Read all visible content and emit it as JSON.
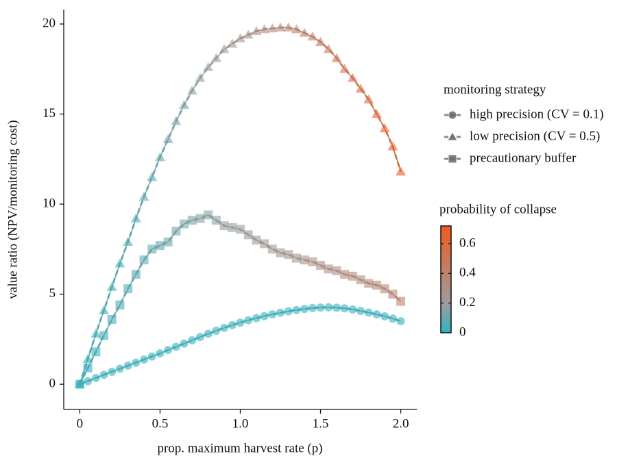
{
  "chart_data": {
    "type": "scatter-line",
    "x_label": "prop. maximum harvest rate (p)",
    "y_label": "value ratio (NPV/monitoring cost)",
    "xlim": [
      -0.1,
      2.1
    ],
    "ylim": [
      -1.4,
      20.8
    ],
    "xticks": [
      0,
      0.5,
      {
        "value": 1,
        "label": "1.0"
      },
      1.5,
      {
        "value": 2,
        "label": "2.0"
      }
    ],
    "yticks": [
      0,
      5,
      10,
      15,
      20
    ],
    "x": [
      0,
      0.05,
      0.1,
      0.15,
      0.2,
      0.25,
      0.3,
      0.35,
      0.4,
      0.45,
      0.5,
      0.55,
      0.6,
      0.65,
      0.7,
      0.75,
      0.8,
      0.85,
      0.9,
      0.95,
      1,
      1.05,
      1.1,
      1.15,
      1.2,
      1.25,
      1.3,
      1.35,
      1.4,
      1.45,
      1.5,
      1.55,
      1.6,
      1.65,
      1.7,
      1.75,
      1.8,
      1.85,
      1.9,
      1.95,
      2
    ],
    "legend": {
      "title": "monitoring strategy"
    },
    "series": [
      {
        "name": "high precision (CV = 0.1)",
        "marker": "circle",
        "values": [
          0,
          0.17,
          0.35,
          0.52,
          0.69,
          0.86,
          1.03,
          1.2,
          1.37,
          1.54,
          1.71,
          1.9,
          2.08,
          2.26,
          2.44,
          2.62,
          2.8,
          2.97,
          3.13,
          3.28,
          3.42,
          3.55,
          3.67,
          3.78,
          3.88,
          3.97,
          4.05,
          4.12,
          4.18,
          4.23,
          4.26,
          4.27,
          4.25,
          4.21,
          4.15,
          4.07,
          3.98,
          3.88,
          3.77,
          3.64,
          3.5
        ],
        "collapse": [
          0,
          0,
          0,
          0,
          0,
          0,
          0,
          0,
          0,
          0,
          0,
          0,
          0,
          0,
          0,
          0,
          0,
          0,
          0,
          0,
          0,
          0,
          0,
          0,
          0,
          0,
          0,
          0,
          0,
          0,
          0,
          0,
          0,
          0,
          0,
          0,
          0,
          0,
          0,
          0,
          0
        ]
      },
      {
        "name": "low precision (CV = 0.5)",
        "marker": "triangle",
        "values": [
          0,
          1.4,
          2.8,
          4.1,
          5.4,
          6.7,
          7.9,
          9.2,
          10.4,
          11.5,
          12.6,
          13.6,
          14.6,
          15.5,
          16.3,
          17,
          17.6,
          18.1,
          18.6,
          18.9,
          19.2,
          19.4,
          19.6,
          19.7,
          19.75,
          19.8,
          19.8,
          19.7,
          19.5,
          19.3,
          19,
          18.6,
          18.1,
          17.5,
          17,
          16.4,
          15.8,
          15,
          14.2,
          13.2,
          11.8
        ],
        "collapse": [
          0,
          0,
          0.01,
          0.02,
          0.02,
          0.03,
          0.04,
          0.05,
          0.07,
          0.08,
          0.09,
          0.11,
          0.12,
          0.14,
          0.16,
          0.17,
          0.19,
          0.21,
          0.23,
          0.25,
          0.27,
          0.29,
          0.31,
          0.33,
          0.35,
          0.37,
          0.39,
          0.42,
          0.44,
          0.46,
          0.49,
          0.51,
          0.54,
          0.56,
          0.59,
          0.61,
          0.64,
          0.67,
          0.69,
          0.72,
          0.75
        ]
      },
      {
        "name": "precautionary buffer",
        "marker": "square",
        "values": [
          0,
          0.9,
          1.8,
          2.7,
          3.6,
          4.4,
          5.3,
          6.1,
          6.9,
          7.5,
          7.7,
          7.9,
          8.5,
          8.9,
          9.1,
          9.2,
          9.4,
          9.1,
          8.8,
          8.7,
          8.6,
          8.3,
          8,
          7.8,
          7.5,
          7.3,
          7.2,
          7,
          6.9,
          6.8,
          6.6,
          6.4,
          6.3,
          6.1,
          6,
          5.8,
          5.6,
          5.5,
          5.3,
          5,
          4.6
        ],
        "collapse": [
          0,
          0.01,
          0.02,
          0.03,
          0.04,
          0.05,
          0.06,
          0.07,
          0.08,
          0.09,
          0.1,
          0.11,
          0.12,
          0.13,
          0.14,
          0.15,
          0.16,
          0.17,
          0.18,
          0.19,
          0.2,
          0.21,
          0.22,
          0.23,
          0.24,
          0.25,
          0.26,
          0.27,
          0.28,
          0.29,
          0.3,
          0.31,
          0.32,
          0.33,
          0.34,
          0.35,
          0.36,
          0.37,
          0.38,
          0.39,
          0.4
        ]
      }
    ],
    "trend_color": "#8c8c8c",
    "colorbar": {
      "title": "probability of collapse",
      "range": [
        0,
        0.72
      ],
      "ticks": [
        0,
        0.2,
        0.4,
        0.6
      ],
      "stops": [
        {
          "value": 0,
          "color": "#2fb4c0"
        },
        {
          "value": 0.2,
          "color": "#9d9d9d"
        },
        {
          "value": 0.72,
          "color": "#f25a1f"
        }
      ]
    }
  }
}
